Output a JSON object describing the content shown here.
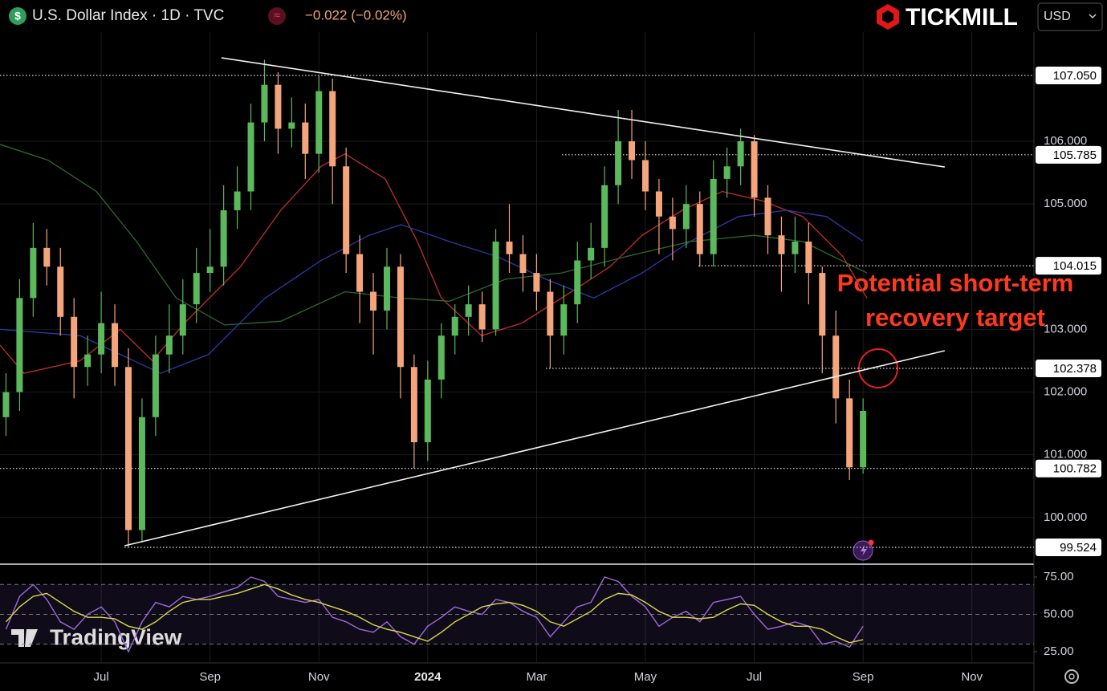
{
  "header": {
    "symbol_icon": "$",
    "title": "U.S. Dollar Index · 1D · TVC",
    "change": "−0.022 (−0.02%)",
    "brand": "TICKMILL",
    "currency": "USD",
    "watermark": "TradingView"
  },
  "chart_data": [
    {
      "type": "candlestick",
      "annotation": [
        "Potential short-term",
        "recovery target"
      ],
      "up_color": "#5cb85c",
      "down_color": "#f4a57c",
      "xlim": [
        5.14,
        24.14
      ],
      "xticks": [
        {
          "value": 7,
          "label": "Jul"
        },
        {
          "value": 9,
          "label": "Sep"
        },
        {
          "value": 11,
          "label": "Nov"
        },
        {
          "value": 13,
          "label": "2024"
        },
        {
          "value": 15,
          "label": "Mar"
        },
        {
          "value": 17,
          "label": "May"
        },
        {
          "value": 19,
          "label": "Jul"
        },
        {
          "value": 21,
          "label": "Sep"
        },
        {
          "value": 23,
          "label": "Nov"
        }
      ],
      "ylim": [
        99.268,
        108.253
      ],
      "yticks": [
        {
          "value": 100,
          "label": "100.000"
        },
        {
          "value": 101,
          "label": "101.000"
        },
        {
          "value": 102,
          "label": "102.000"
        },
        {
          "value": 103,
          "label": "103.000"
        },
        {
          "value": 105,
          "label": "105.000"
        },
        {
          "value": 106,
          "label": "106.000"
        }
      ],
      "grid": true,
      "levels": [
        {
          "value": 107.05,
          "label": "107.050"
        },
        {
          "value": 105.785,
          "label": "105.785"
        },
        {
          "value": 104.015,
          "label": "104.015"
        },
        {
          "value": 102.378,
          "label": "102.378"
        },
        {
          "value": 100.782,
          "label": "100.782"
        },
        {
          "value": 99.524,
          "label": "99.524"
        }
      ],
      "x": [
        5.25,
        5.5,
        5.75,
        6,
        6.25,
        6.5,
        6.75,
        7,
        7.25,
        7.5,
        7.75,
        8,
        8.25,
        8.5,
        8.75,
        9,
        9.25,
        9.5,
        9.75,
        10,
        10.25,
        10.5,
        10.75,
        11,
        11.25,
        11.5,
        11.75,
        12,
        12.25,
        12.5,
        12.75,
        13,
        13.25,
        13.5,
        13.75,
        14,
        14.25,
        14.5,
        14.75,
        15,
        15.25,
        15.5,
        15.75,
        16,
        16.25,
        16.5,
        16.75,
        17,
        17.25,
        17.5,
        17.75,
        18,
        18.25,
        18.5,
        18.75,
        19,
        19.25,
        19.5,
        19.75,
        20,
        20.25,
        20.5,
        20.75,
        21
      ],
      "open": [
        101.6,
        102.0,
        103.5,
        104.3,
        104.0,
        103.2,
        102.4,
        102.6,
        103.1,
        102.4,
        99.8,
        101.6,
        102.6,
        102.9,
        103.4,
        103.9,
        104.0,
        104.9,
        105.2,
        106.3,
        106.9,
        106.2,
        106.3,
        105.8,
        106.8,
        105.6,
        104.2,
        103.6,
        103.3,
        104.0,
        102.4,
        101.2,
        102.2,
        102.9,
        103.2,
        103.4,
        103.0,
        104.4,
        104.2,
        103.9,
        103.6,
        102.9,
        103.4,
        104.1,
        104.3,
        105.3,
        106.0,
        105.7,
        105.2,
        104.8,
        104.6,
        105.0,
        104.2,
        105.4,
        105.6,
        106.0,
        105.1,
        104.5,
        104.2,
        104.4,
        103.9,
        102.9,
        101.9,
        100.8
      ],
      "high": [
        102.3,
        103.8,
        104.7,
        104.6,
        104.3,
        103.5,
        102.9,
        103.6,
        103.4,
        102.7,
        101.9,
        102.9,
        103.4,
        103.8,
        104.3,
        104.6,
        105.3,
        105.6,
        106.6,
        107.3,
        107.1,
        106.7,
        106.6,
        107.05,
        107.0,
        105.9,
        104.5,
        103.9,
        104.3,
        104.2,
        102.6,
        102.5,
        103.1,
        103.4,
        103.7,
        103.6,
        104.6,
        105.0,
        104.5,
        104.2,
        103.8,
        103.7,
        104.4,
        104.7,
        105.6,
        106.5,
        106.5,
        106.0,
        105.4,
        105.1,
        105.3,
        105.2,
        105.7,
        105.9,
        106.2,
        106.1,
        105.3,
        104.8,
        104.8,
        104.7,
        104.0,
        103.3,
        102.2,
        101.9
      ],
      "low": [
        101.3,
        101.7,
        103.2,
        103.7,
        102.9,
        101.9,
        102.1,
        102.3,
        102.1,
        99.52,
        99.6,
        101.3,
        102.3,
        102.6,
        103.1,
        103.6,
        103.7,
        104.6,
        104.9,
        106.0,
        105.8,
        105.9,
        105.4,
        105.5,
        105.0,
        103.9,
        103.1,
        102.6,
        103.0,
        101.9,
        100.78,
        100.9,
        101.9,
        102.6,
        102.9,
        102.8,
        102.9,
        103.9,
        103.6,
        103.3,
        102.38,
        102.6,
        103.1,
        103.8,
        104.0,
        105.0,
        105.4,
        104.9,
        104.2,
        104.1,
        104.3,
        104.0,
        104.0,
        105.1,
        105.3,
        104.8,
        104.2,
        103.6,
        103.9,
        103.4,
        102.3,
        101.5,
        100.6,
        100.7
      ],
      "close": [
        102.0,
        103.5,
        104.3,
        104.0,
        103.2,
        102.4,
        102.6,
        103.1,
        102.4,
        99.8,
        101.6,
        102.6,
        102.9,
        103.4,
        103.9,
        104.0,
        104.9,
        105.2,
        106.3,
        106.9,
        106.2,
        106.3,
        105.8,
        106.8,
        105.6,
        104.2,
        103.6,
        103.3,
        104.0,
        102.4,
        101.2,
        102.2,
        102.9,
        103.2,
        103.4,
        103.0,
        104.4,
        104.2,
        103.9,
        103.6,
        102.9,
        103.4,
        104.1,
        104.3,
        105.3,
        106.0,
        105.7,
        105.2,
        104.8,
        104.6,
        105.0,
        104.2,
        105.4,
        105.6,
        106.0,
        105.1,
        104.5,
        104.2,
        104.4,
        103.9,
        102.9,
        101.9,
        100.8,
        101.7
      ],
      "overlays": [
        {
          "color": "#c0302a",
          "x": [
            5.14,
            5.58,
            6.61,
            7.35,
            7.94,
            8.53,
            9.56,
            10.3,
            11.04,
            11.48,
            12.22,
            12.81,
            13.25,
            13.99,
            14.73,
            15.46,
            16.35,
            16.94,
            17.68,
            18.41,
            19.15,
            19.89,
            20.63,
            21.07
          ],
          "values": [
            102.75,
            102.3,
            102.5,
            103.0,
            102.5,
            103.1,
            104.0,
            104.9,
            105.6,
            105.8,
            105.4,
            104.4,
            103.5,
            102.9,
            103.1,
            103.5,
            104.0,
            104.5,
            104.9,
            105.2,
            105.05,
            104.8,
            104.16,
            103.5
          ]
        },
        {
          "color": "#2a3aa8",
          "x": [
            5.14,
            6.61,
            8.09,
            8.97,
            10.01,
            11.04,
            11.92,
            12.51,
            13.4,
            14.28,
            15.17,
            16.05,
            16.94,
            17.82,
            18.71,
            19.59,
            20.33,
            20.99
          ],
          "values": [
            103.0,
            102.9,
            102.3,
            102.6,
            103.5,
            104.1,
            104.5,
            104.67,
            104.4,
            104.16,
            103.8,
            103.5,
            103.9,
            104.4,
            104.8,
            104.9,
            104.8,
            104.41
          ]
        },
        {
          "color": "#2d6a2d",
          "x": [
            5.14,
            6.02,
            6.91,
            7.65,
            8.38,
            9.27,
            10.3,
            11.48,
            12.51,
            13.4,
            14.43,
            15.46,
            16.64,
            17.82,
            19.0,
            19.89,
            21.07
          ],
          "values": [
            105.95,
            105.7,
            105.2,
            104.4,
            103.5,
            103.07,
            103.13,
            103.6,
            103.5,
            103.45,
            103.8,
            103.9,
            104.16,
            104.4,
            104.5,
            104.4,
            103.9
          ]
        }
      ],
      "trendlines": [
        {
          "x": [
            9.21,
            22.5
          ],
          "values": [
            107.33,
            105.59
          ]
        },
        {
          "x": [
            7.43,
            22.5
          ],
          "values": [
            99.55,
            102.66
          ]
        }
      ]
    },
    {
      "type": "line",
      "ylim": [
        18.0,
        82.5
      ],
      "yticks": [
        {
          "value": 25,
          "label": "25.00"
        },
        {
          "value": 50,
          "label": "50.00"
        },
        {
          "value": 75,
          "label": "75.00"
        }
      ],
      "band": [
        30,
        70
      ],
      "guides": [
        70,
        50,
        30
      ],
      "x": [
        5.25,
        5.5,
        5.75,
        6,
        6.25,
        6.5,
        6.75,
        7,
        7.25,
        7.5,
        7.75,
        8,
        8.25,
        8.5,
        8.75,
        9,
        9.25,
        9.5,
        9.75,
        10,
        10.25,
        10.5,
        10.75,
        11,
        11.25,
        11.5,
        11.75,
        12,
        12.25,
        12.5,
        12.75,
        13,
        13.25,
        13.5,
        13.75,
        14,
        14.25,
        14.5,
        14.75,
        15,
        15.25,
        15.5,
        15.75,
        16,
        16.25,
        16.5,
        16.75,
        17,
        17.25,
        17.5,
        17.75,
        18,
        18.25,
        18.5,
        18.75,
        19,
        19.25,
        19.5,
        19.75,
        20,
        20.25,
        20.5,
        20.75,
        21
      ],
      "series": [
        {
          "color": "#9c6ad8",
          "values": [
            40,
            62,
            70,
            60,
            45,
            40,
            50,
            55,
            45,
            25,
            45,
            58,
            55,
            62,
            60,
            62,
            65,
            68,
            75,
            72,
            62,
            60,
            58,
            60,
            48,
            45,
            40,
            38,
            45,
            35,
            30,
            42,
            48,
            55,
            52,
            50,
            60,
            58,
            52,
            48,
            35,
            45,
            55,
            58,
            75,
            72,
            62,
            55,
            42,
            48,
            52,
            45,
            58,
            60,
            62,
            50,
            40,
            42,
            45,
            42,
            30,
            32,
            28,
            42
          ]
        },
        {
          "color": "#d9d94a",
          "values": [
            45,
            55,
            62,
            64,
            58,
            52,
            48,
            48,
            47,
            42,
            40,
            45,
            52,
            58,
            60,
            60,
            62,
            64,
            67,
            70,
            67,
            63,
            60,
            58,
            55,
            52,
            48,
            43,
            40,
            38,
            35,
            32,
            38,
            45,
            50,
            55,
            57,
            58,
            56,
            52,
            45,
            42,
            47,
            52,
            60,
            64,
            63,
            58,
            52,
            48,
            48,
            47,
            48,
            53,
            57,
            56,
            50,
            45,
            42,
            42,
            40,
            35,
            31,
            33
          ]
        }
      ]
    }
  ]
}
